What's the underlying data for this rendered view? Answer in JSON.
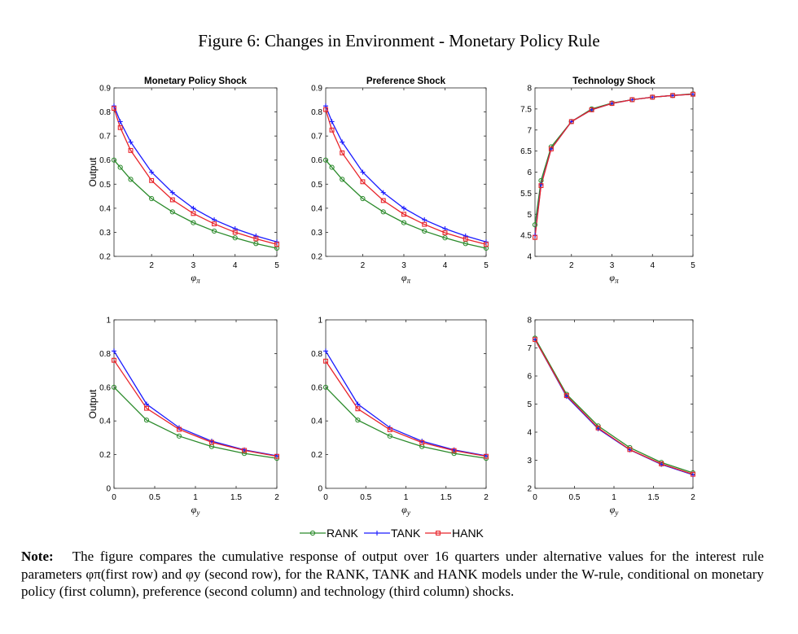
{
  "title": "Figure 6: Changes in Environment - Monetary Policy Rule",
  "legend": [
    "RANK",
    "TANK",
    "HANK"
  ],
  "colors": {
    "RANK": "#2a8a2a",
    "TANK": "#1a1aff",
    "HANK": "#e8242a"
  },
  "note": {
    "label": "Note:",
    "text": "The figure compares the cumulative response of output over 16 quarters under alternative values for the interest rule parameters φπ(first row) and φy (second row), for the RANK, TANK and HANK models under the W-rule, conditional on monetary policy (first column), preference (second column) and technology (third column) shocks."
  },
  "chart_data": [
    {
      "type": "line",
      "title": "Monetary Policy Shock",
      "ylabel": "Output",
      "xlabel": "φπ",
      "xlim": [
        1.1,
        5
      ],
      "ylim": [
        0.2,
        0.9
      ],
      "xticks": [
        2,
        3,
        4,
        5
      ],
      "yticks": [
        0.2,
        0.3,
        0.4,
        0.5,
        0.6,
        0.7,
        0.8,
        0.9
      ],
      "x": [
        1.1,
        1.25,
        1.5,
        2,
        2.5,
        3,
        3.5,
        4,
        4.5,
        5
      ],
      "series": [
        {
          "name": "RANK",
          "values": [
            0.6,
            0.57,
            0.52,
            0.44,
            0.385,
            0.34,
            0.305,
            0.277,
            0.253,
            0.234
          ]
        },
        {
          "name": "TANK",
          "values": [
            0.825,
            0.76,
            0.675,
            0.55,
            0.465,
            0.4,
            0.352,
            0.315,
            0.285,
            0.26
          ]
        },
        {
          "name": "HANK",
          "values": [
            0.815,
            0.735,
            0.64,
            0.515,
            0.435,
            0.378,
            0.335,
            0.3,
            0.273,
            0.25
          ]
        }
      ]
    },
    {
      "type": "line",
      "title": "Preference Shock",
      "ylabel": "",
      "xlabel": "φπ",
      "xlim": [
        1.1,
        5
      ],
      "ylim": [
        0.2,
        0.9
      ],
      "xticks": [
        2,
        3,
        4,
        5
      ],
      "yticks": [
        0.2,
        0.3,
        0.4,
        0.5,
        0.6,
        0.7,
        0.8,
        0.9
      ],
      "x": [
        1.1,
        1.25,
        1.5,
        2,
        2.5,
        3,
        3.5,
        4,
        4.5,
        5
      ],
      "series": [
        {
          "name": "RANK",
          "values": [
            0.6,
            0.57,
            0.52,
            0.44,
            0.385,
            0.34,
            0.305,
            0.277,
            0.253,
            0.234
          ]
        },
        {
          "name": "TANK",
          "values": [
            0.825,
            0.76,
            0.675,
            0.55,
            0.465,
            0.4,
            0.352,
            0.315,
            0.285,
            0.26
          ]
        },
        {
          "name": "HANK",
          "values": [
            0.81,
            0.725,
            0.63,
            0.51,
            0.432,
            0.375,
            0.333,
            0.298,
            0.272,
            0.25
          ]
        }
      ]
    },
    {
      "type": "line",
      "title": "Technology Shock",
      "ylabel": "",
      "xlabel": "φπ",
      "xlim": [
        1.1,
        5
      ],
      "ylim": [
        4,
        8
      ],
      "xticks": [
        2,
        3,
        4,
        5
      ],
      "yticks": [
        4,
        4.5,
        5,
        5.5,
        6,
        6.5,
        7,
        7.5,
        8
      ],
      "x": [
        1.1,
        1.25,
        1.5,
        2,
        2.5,
        3,
        3.5,
        4,
        4.5,
        5
      ],
      "series": [
        {
          "name": "RANK",
          "values": [
            4.75,
            5.8,
            6.6,
            7.2,
            7.5,
            7.64,
            7.72,
            7.78,
            7.82,
            7.86
          ]
        },
        {
          "name": "TANK",
          "values": [
            4.5,
            5.7,
            6.55,
            7.2,
            7.48,
            7.63,
            7.72,
            7.78,
            7.82,
            7.85
          ]
        },
        {
          "name": "HANK",
          "values": [
            4.45,
            5.68,
            6.55,
            7.2,
            7.48,
            7.63,
            7.72,
            7.78,
            7.82,
            7.85
          ]
        }
      ]
    },
    {
      "type": "line",
      "title": "",
      "ylabel": "Output",
      "xlabel": "φy",
      "xlim": [
        0,
        2
      ],
      "ylim": [
        0,
        1
      ],
      "xticks": [
        0,
        0.5,
        1,
        1.5,
        2
      ],
      "yticks": [
        0,
        0.2,
        0.4,
        0.6,
        0.8,
        1
      ],
      "x": [
        0,
        0.4,
        0.8,
        1.2,
        1.6,
        2
      ],
      "series": [
        {
          "name": "RANK",
          "values": [
            0.6,
            0.405,
            0.31,
            0.248,
            0.207,
            0.178
          ]
        },
        {
          "name": "TANK",
          "values": [
            0.815,
            0.5,
            0.36,
            0.28,
            0.228,
            0.193
          ]
        },
        {
          "name": "HANK",
          "values": [
            0.76,
            0.475,
            0.35,
            0.273,
            0.225,
            0.19
          ]
        }
      ]
    },
    {
      "type": "line",
      "title": "",
      "ylabel": "",
      "xlabel": "φy",
      "xlim": [
        0,
        2
      ],
      "ylim": [
        0,
        1
      ],
      "xticks": [
        0,
        0.5,
        1,
        1.5,
        2
      ],
      "yticks": [
        0,
        0.2,
        0.4,
        0.6,
        0.8,
        1
      ],
      "x": [
        0,
        0.4,
        0.8,
        1.2,
        1.6,
        2
      ],
      "series": [
        {
          "name": "RANK",
          "values": [
            0.6,
            0.405,
            0.31,
            0.248,
            0.207,
            0.178
          ]
        },
        {
          "name": "TANK",
          "values": [
            0.815,
            0.5,
            0.36,
            0.28,
            0.228,
            0.193
          ]
        },
        {
          "name": "HANK",
          "values": [
            0.755,
            0.472,
            0.348,
            0.272,
            0.224,
            0.19
          ]
        }
      ]
    },
    {
      "type": "line",
      "title": "",
      "ylabel": "",
      "xlabel": "φy",
      "xlim": [
        0,
        2
      ],
      "ylim": [
        2,
        8
      ],
      "xticks": [
        0,
        0.5,
        1,
        1.5,
        2
      ],
      "yticks": [
        2,
        3,
        4,
        5,
        6,
        7,
        8
      ],
      "x": [
        0,
        0.4,
        0.8,
        1.2,
        1.6,
        2
      ],
      "series": [
        {
          "name": "RANK",
          "values": [
            7.35,
            5.35,
            4.22,
            3.45,
            2.92,
            2.55
          ]
        },
        {
          "name": "TANK",
          "values": [
            7.3,
            5.27,
            4.12,
            3.37,
            2.85,
            2.48
          ]
        },
        {
          "name": "HANK",
          "values": [
            7.3,
            5.3,
            4.15,
            3.38,
            2.87,
            2.5
          ]
        }
      ]
    }
  ]
}
